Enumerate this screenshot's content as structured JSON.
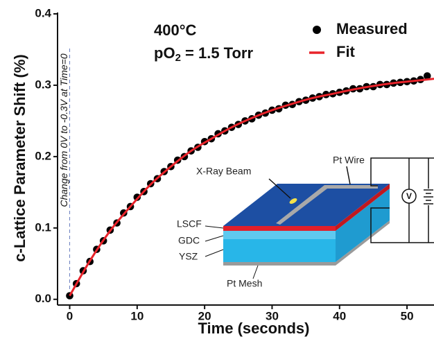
{
  "chart_data": {
    "type": "scatter",
    "x_label": "Time (seconds)",
    "y_label": "c-Lattice Parameter Shift (%)",
    "annotations": {
      "temperature": "400°C",
      "pressure": [
        "pO",
        "2",
        " = 1.5 Torr"
      ],
      "event": "Change from 0V to -0.3V at Time=0"
    },
    "inset_labels": {
      "beam": "X-Ray Beam",
      "wire": "Pt Wire",
      "lscf": "LSCF",
      "gdc": "GDC",
      "ysz": "YSZ",
      "mesh": "Pt Mesh",
      "meter": "V"
    },
    "xlim": [
      -1.8,
      54
    ],
    "ylim": [
      -0.008,
      0.4
    ],
    "xticks": [
      0,
      10,
      20,
      30,
      40,
      50
    ],
    "yticks": [
      {
        "value": 0,
        "label": "0.0"
      },
      0.1,
      0.2,
      0.3,
      0.4
    ],
    "legend": "upper right",
    "series": [
      {
        "name": "Measured",
        "type": "scatter",
        "color": "#000000",
        "x": [
          0,
          1,
          2,
          3,
          4,
          5,
          6,
          7,
          8,
          9,
          10,
          11,
          12,
          13,
          14,
          15,
          16,
          17,
          18,
          19,
          20,
          21,
          22,
          23,
          24,
          25,
          26,
          27,
          28,
          29,
          30,
          31,
          32,
          33,
          34,
          35,
          36,
          37,
          38,
          39,
          40,
          41,
          42,
          43,
          44,
          45,
          46,
          47,
          48,
          49,
          50,
          51,
          52,
          53
        ],
        "values": [
          0.005,
          0.022,
          0.04,
          0.053,
          0.07,
          0.082,
          0.097,
          0.107,
          0.121,
          0.13,
          0.143,
          0.151,
          0.162,
          0.169,
          0.179,
          0.186,
          0.195,
          0.2,
          0.208,
          0.213,
          0.221,
          0.225,
          0.232,
          0.236,
          0.241,
          0.245,
          0.25,
          0.253,
          0.258,
          0.261,
          0.265,
          0.267,
          0.272,
          0.273,
          0.277,
          0.279,
          0.282,
          0.284,
          0.287,
          0.288,
          0.29,
          0.292,
          0.295,
          0.295,
          0.298,
          0.298,
          0.301,
          0.301,
          0.303,
          0.304,
          0.305,
          0.306,
          0.308,
          0.313
        ]
      },
      {
        "name": "Fit",
        "type": "line",
        "color": "#e8232a",
        "x": [
          0,
          3,
          6,
          9,
          12,
          15,
          18,
          21,
          24,
          27,
          30,
          33,
          36,
          39,
          42,
          45,
          48,
          51,
          54
        ],
        "values": [
          0.005,
          0.054,
          0.096,
          0.13,
          0.161,
          0.186,
          0.208,
          0.225,
          0.241,
          0.254,
          0.265,
          0.274,
          0.282,
          0.288,
          0.294,
          0.299,
          0.303,
          0.306,
          0.309
        ]
      }
    ]
  }
}
